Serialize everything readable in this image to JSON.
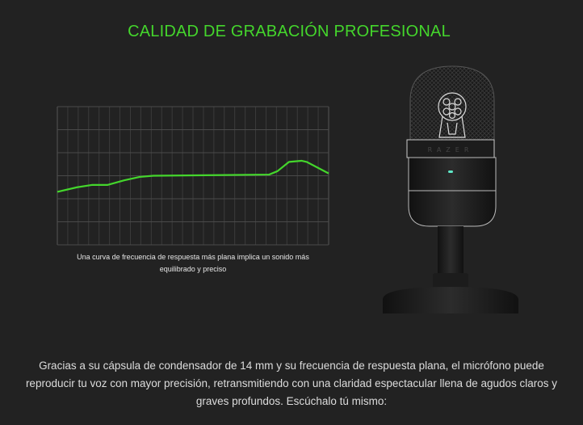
{
  "section": {
    "title": "CALIDAD DE GRABACIÓN PROFESIONAL",
    "caption": "Una curva de frecuencia de respuesta más plana implica un sonido más equilibrado y preciso",
    "body": "Gracias a su cápsula de condensador de 14 mm y su frecuencia de respuesta plana, el micrófono puede reproducir tu voz con mayor precisión, retransmitiendo con una claridad espectacular llena de agudos claros y graves profundos. Escúchalo tú mismo:",
    "product_logo_text": "RAZER"
  },
  "colors": {
    "accent": "#44d62c",
    "background": "#222222",
    "grid": "#4a4a4a"
  },
  "chart_data": {
    "type": "line",
    "title": "",
    "xlabel": "",
    "ylabel": "",
    "xlim": [
      0,
      26
    ],
    "ylim": [
      0,
      6
    ],
    "grid": true,
    "x_gridlines": 26,
    "y_gridlines": 6,
    "series": [
      {
        "color": "#44d62c",
        "x": [
          0,
          1.9,
          3.3,
          4.8,
          6.4,
          7.9,
          9.2,
          20.3,
          21.1,
          22.2,
          23.4,
          23.9,
          26
        ],
        "y": [
          2.3,
          2.5,
          2.6,
          2.6,
          2.8,
          2.95,
          3.0,
          3.05,
          3.2,
          3.6,
          3.65,
          3.6,
          3.1
        ]
      }
    ]
  }
}
